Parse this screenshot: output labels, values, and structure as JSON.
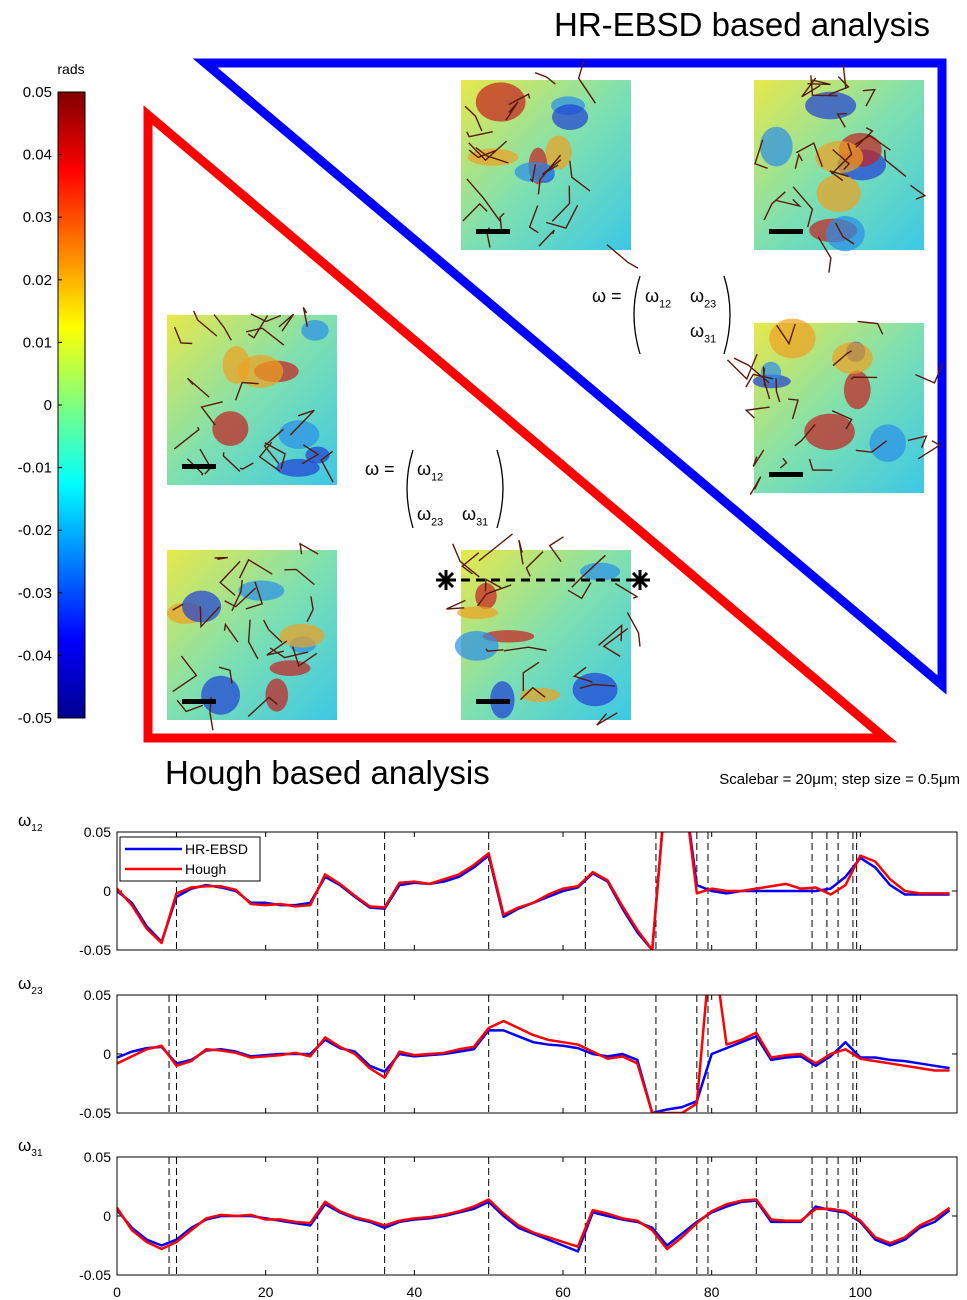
{
  "figure": {
    "hr_title": "HR-EBSD based analysis",
    "hough_title": "Hough based analysis",
    "scalebar_note": "Scalebar = 20μm; step size = 0.5μm",
    "hr_matrix": {
      "lhs": "ω =",
      "entries": [
        {
          "sym": "ω",
          "sub": "12"
        },
        {
          "sym": "ω",
          "sub": "23"
        },
        {
          "sym": "ω",
          "sub": "31"
        }
      ]
    },
    "hough_matrix": {
      "lhs": "ω =",
      "entries": [
        {
          "sym": "ω",
          "sub": "12"
        },
        {
          "sym": "ω",
          "sub": "23"
        },
        {
          "sym": "ω",
          "sub": "31"
        }
      ]
    }
  },
  "colorbar": {
    "label": "rads",
    "lim": [
      -0.05,
      0.05
    ],
    "ticks": [
      0.05,
      0.04,
      0.03,
      0.02,
      0.01,
      0,
      -0.01,
      -0.02,
      -0.03,
      -0.04,
      -0.05
    ],
    "colormap": "jet"
  },
  "chart_data": [
    {
      "type": "line",
      "ylabel": {
        "sym": "ω",
        "sub": "12"
      },
      "x": [
        0,
        2,
        4,
        6,
        8,
        10,
        12,
        14,
        16,
        18,
        20,
        22,
        24,
        26,
        28,
        30,
        32,
        34,
        36,
        38,
        40,
        42,
        44,
        46,
        48,
        50,
        52,
        54,
        56,
        58,
        60,
        62,
        64,
        66,
        68,
        70,
        72,
        74,
        76,
        78,
        80,
        82,
        84,
        86,
        88,
        90,
        92,
        94,
        96,
        98,
        100,
        102,
        104,
        106,
        108,
        110,
        112
      ],
      "series": [
        {
          "name": "HR-EBSD",
          "color": "#0000ff",
          "values": [
            0,
            -0.01,
            -0.03,
            -0.043,
            -0.005,
            0.002,
            0.005,
            0.003,
            0,
            -0.01,
            -0.01,
            -0.012,
            -0.012,
            -0.01,
            0.012,
            0.005,
            -0.005,
            -0.014,
            -0.015,
            0.005,
            0.007,
            0.006,
            0.008,
            0.012,
            0.02,
            0.03,
            -0.022,
            -0.015,
            -0.01,
            -0.005,
            0,
            0.003,
            0.015,
            0.008,
            -0.015,
            -0.035,
            -0.05,
            0.1,
            0.1,
            0.005,
            0,
            -0.002,
            0,
            0,
            0,
            0,
            0,
            0,
            0.002,
            0.012,
            0.028,
            0.02,
            0.005,
            -0.003,
            -0.003,
            -0.003,
            -0.003
          ]
        },
        {
          "name": "Hough",
          "color": "#ff0000",
          "values": [
            0.002,
            -0.012,
            -0.032,
            -0.044,
            -0.002,
            0.003,
            0.004,
            0.004,
            0.001,
            -0.011,
            -0.012,
            -0.011,
            -0.013,
            -0.012,
            0.014,
            0.006,
            -0.004,
            -0.013,
            -0.014,
            0.007,
            0.008,
            0.006,
            0.01,
            0.014,
            0.022,
            0.032,
            -0.02,
            -0.014,
            -0.01,
            -0.003,
            0.002,
            0.004,
            0.016,
            0.009,
            -0.013,
            -0.033,
            -0.05,
            0.1,
            0.1,
            -0.002,
            0.002,
            0,
            0,
            0.002,
            0.004,
            0.006,
            0.002,
            0.003,
            -0.003,
            0.005,
            0.03,
            0.025,
            0.01,
            0,
            -0.002,
            -0.002,
            -0.002
          ]
        }
      ],
      "xlim": [
        0,
        113
      ],
      "ylim": [
        -0.05,
        0.05
      ],
      "yticks": [
        -0.05,
        0,
        0.05
      ],
      "xticks": [
        0,
        20,
        40,
        60,
        80,
        100
      ],
      "show_xtick_labels": false,
      "vlines": [
        8,
        27,
        36,
        50,
        63,
        72.5,
        78,
        79.5,
        86,
        93.5,
        95.5,
        97,
        99,
        99.5
      ],
      "legend": "upper left"
    },
    {
      "type": "line",
      "ylabel": {
        "sym": "ω",
        "sub": "23"
      },
      "x": [
        0,
        2,
        4,
        6,
        8,
        10,
        12,
        14,
        16,
        18,
        20,
        22,
        24,
        26,
        28,
        30,
        32,
        34,
        36,
        38,
        40,
        42,
        44,
        46,
        48,
        50,
        52,
        54,
        56,
        58,
        60,
        62,
        64,
        66,
        68,
        70,
        72,
        74,
        76,
        78,
        80,
        82,
        84,
        86,
        88,
        90,
        92,
        94,
        96,
        98,
        100,
        102,
        104,
        106,
        108,
        110,
        112
      ],
      "series": [
        {
          "name": "HR-EBSD",
          "color": "#0000ff",
          "values": [
            -0.003,
            0.002,
            0.005,
            0.006,
            -0.008,
            -0.005,
            0.003,
            0.004,
            0.002,
            -0.002,
            -0.001,
            0,
            0,
            0,
            0.012,
            0.005,
            0.002,
            -0.01,
            -0.015,
            0,
            -0.002,
            -0.001,
            0,
            0.002,
            0.004,
            0.02,
            0.02,
            0.015,
            0.01,
            0.008,
            0.007,
            0.005,
            0,
            -0.002,
            0,
            -0.005,
            -0.05,
            -0.047,
            -0.045,
            -0.04,
            0,
            0.005,
            0.01,
            0.015,
            -0.005,
            -0.003,
            -0.002,
            -0.01,
            -0.002,
            0.01,
            -0.003,
            -0.003,
            -0.005,
            -0.006,
            -0.008,
            -0.01,
            -0.012
          ]
        },
        {
          "name": "Hough",
          "color": "#ff0000",
          "values": [
            -0.008,
            -0.002,
            0.004,
            0.007,
            -0.01,
            -0.006,
            0.004,
            0.003,
            0.001,
            -0.003,
            -0.002,
            -0.001,
            0.001,
            -0.002,
            0.014,
            0.006,
            0,
            -0.012,
            -0.02,
            0.002,
            -0.001,
            0,
            0.001,
            0.004,
            0.006,
            0.022,
            0.028,
            0.022,
            0.016,
            0.012,
            0.01,
            0.008,
            0.002,
            -0.004,
            -0.002,
            -0.008,
            -0.05,
            -0.05,
            -0.05,
            -0.042,
            0.1,
            0.008,
            0.012,
            0.018,
            -0.003,
            -0.001,
            0,
            -0.008,
            0,
            0.004,
            -0.004,
            -0.006,
            -0.008,
            -0.01,
            -0.012,
            -0.014,
            -0.014
          ]
        }
      ],
      "xlim": [
        0,
        113
      ],
      "ylim": [
        -0.05,
        0.05
      ],
      "yticks": [
        -0.05,
        0,
        0.05
      ],
      "xticks": [
        0,
        20,
        40,
        60,
        80,
        100
      ],
      "show_xtick_labels": false,
      "vlines": [
        7,
        8,
        27,
        36,
        50,
        63,
        72.5,
        78,
        79.5,
        86,
        93.5,
        95.5,
        97,
        99,
        99.5
      ]
    },
    {
      "type": "line",
      "ylabel": {
        "sym": "ω",
        "sub": "31"
      },
      "x": [
        0,
        2,
        4,
        6,
        8,
        10,
        12,
        14,
        16,
        18,
        20,
        22,
        24,
        26,
        28,
        30,
        32,
        34,
        36,
        38,
        40,
        42,
        44,
        46,
        48,
        50,
        52,
        54,
        56,
        58,
        60,
        62,
        64,
        66,
        68,
        70,
        72,
        74,
        76,
        78,
        80,
        82,
        84,
        86,
        88,
        90,
        92,
        94,
        96,
        98,
        100,
        102,
        104,
        106,
        108,
        110,
        112
      ],
      "series": [
        {
          "name": "HR-EBSD",
          "color": "#0000ff",
          "values": [
            0.005,
            -0.01,
            -0.02,
            -0.025,
            -0.02,
            -0.01,
            -0.003,
            0,
            0,
            0,
            -0.002,
            -0.004,
            -0.006,
            -0.008,
            0.01,
            0.003,
            -0.002,
            -0.005,
            -0.01,
            -0.005,
            -0.003,
            -0.002,
            0,
            0.003,
            0.006,
            0.012,
            0,
            -0.01,
            -0.015,
            -0.02,
            -0.025,
            -0.03,
            0.003,
            0,
            -0.003,
            -0.005,
            -0.01,
            -0.025,
            -0.015,
            -0.005,
            0.003,
            0.008,
            0.012,
            0.013,
            -0.005,
            -0.005,
            -0.005,
            0.008,
            0.005,
            0.003,
            -0.005,
            -0.02,
            -0.025,
            -0.02,
            -0.01,
            -0.005,
            0.005
          ]
        },
        {
          "name": "Hough",
          "color": "#ff0000",
          "values": [
            0.007,
            -0.012,
            -0.022,
            -0.028,
            -0.022,
            -0.012,
            -0.002,
            0.001,
            0,
            0.001,
            -0.003,
            -0.003,
            -0.005,
            -0.006,
            0.012,
            0.004,
            -0.001,
            -0.004,
            -0.008,
            -0.004,
            -0.002,
            -0.001,
            0.001,
            0.004,
            0.008,
            0.014,
            0.002,
            -0.008,
            -0.014,
            -0.018,
            -0.022,
            -0.026,
            0.005,
            0.002,
            -0.002,
            -0.004,
            -0.012,
            -0.028,
            -0.018,
            -0.006,
            0.004,
            0.01,
            0.013,
            0.014,
            -0.003,
            -0.004,
            -0.004,
            0.006,
            0.006,
            0.004,
            -0.004,
            -0.018,
            -0.023,
            -0.018,
            -0.008,
            -0.002,
            0.007
          ]
        }
      ],
      "xlim": [
        0,
        113
      ],
      "ylim": [
        -0.05,
        0.05
      ],
      "yticks": [
        -0.05,
        0,
        0.05
      ],
      "xticks": [
        0,
        20,
        40,
        60,
        80,
        100
      ],
      "show_xtick_labels": true,
      "vlines": [
        7,
        8,
        27,
        36,
        50,
        63,
        72.5,
        78,
        79.5,
        86,
        93.5,
        95.5,
        97,
        99,
        99.5
      ]
    }
  ]
}
